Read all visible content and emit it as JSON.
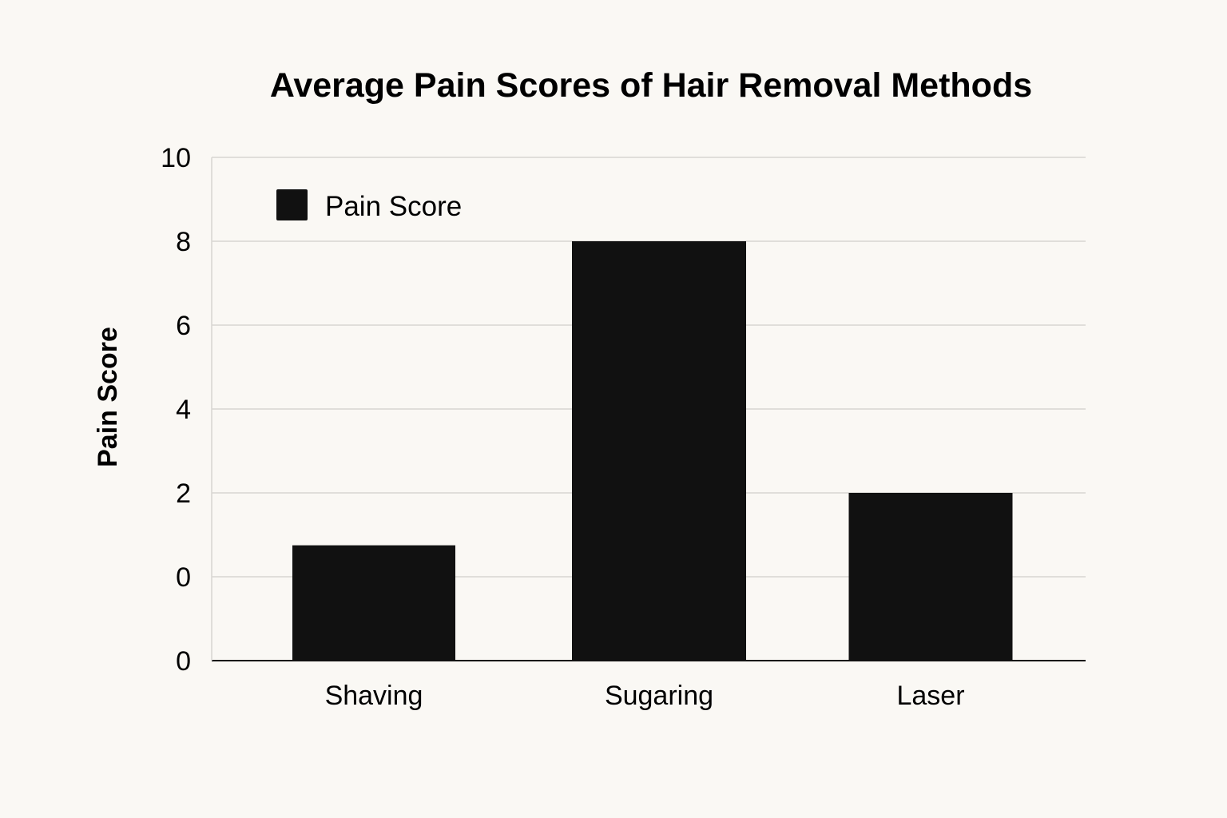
{
  "chart_data": {
    "type": "bar",
    "title": "Average Pain Scores of Hair Removal Methods",
    "xlabel": "",
    "ylabel": "Pain Score",
    "categories": [
      "Shaving",
      "Sugaring",
      "Laser"
    ],
    "series": [
      {
        "name": "Pain Score",
        "values": [
          0.75,
          8,
          2
        ],
        "color": "#111111"
      }
    ],
    "y_ticks": [
      "0",
      "0",
      "2",
      "4",
      "6",
      "8",
      "10"
    ],
    "ylim": [
      0,
      10
    ],
    "grid": true,
    "legend_position": "top-left"
  },
  "colors": {
    "background": "#faf8f4",
    "bar": "#111111",
    "grid": "#d8d6d2",
    "axis": "#111111"
  }
}
